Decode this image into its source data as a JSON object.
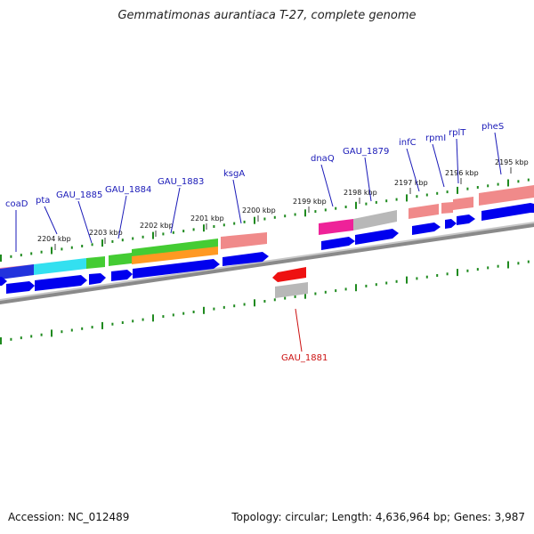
{
  "title": "Gemmatimonas aurantiaca T-27, complete genome",
  "footer": {
    "accession": "Accession: NC_012489",
    "topology": "Topology: circular; Length: 4,636,964 bp; Genes: 3,987"
  },
  "colors": {
    "backbone": "#888888",
    "forward_label": "#1a1ab8",
    "reverse_label": "#cc1111",
    "tick": "#1f8a1f",
    "cds": "#0000ee",
    "gene_cyan": "#33e0f0",
    "gene_green": "#44cc33",
    "gene_orange": "#ff9922",
    "gene_salmon": "#f08a8a",
    "gene_magenta": "#ee2299",
    "gene_gray": "#b8b8b8",
    "gene_red": "#ee1111"
  },
  "scale_labels": [
    "2204 kbp",
    "2203 kbp",
    "2202 kbp",
    "2201 kbp",
    "2200 kbp",
    "2199 kbp",
    "2198 kbp",
    "2197 kbp",
    "2196 kbp",
    "2195 kbp"
  ],
  "forward_genes": [
    "coaD",
    "pta",
    "GAU_1885",
    "GAU_1884",
    "GAU_1883",
    "ksgA",
    "dnaQ",
    "GAU_1879",
    "infC",
    "rpmI",
    "rplT",
    "pheS"
  ],
  "reverse_genes": [
    "GAU_1881"
  ]
}
